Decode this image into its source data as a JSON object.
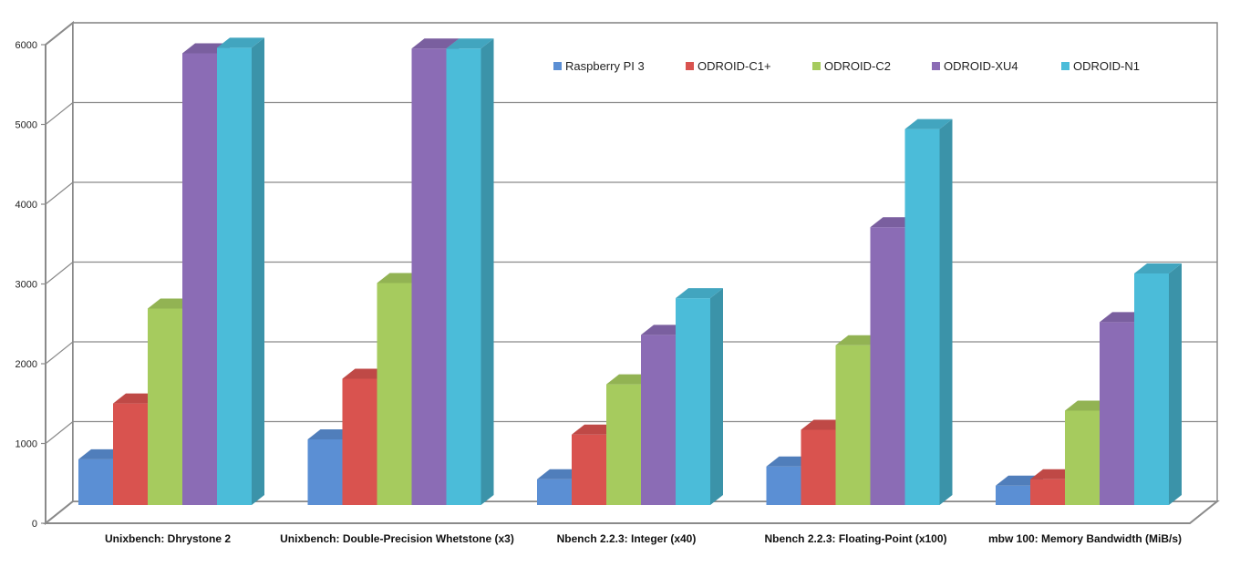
{
  "chart_data": {
    "type": "bar",
    "style": "3d-clustered",
    "title": "",
    "xlabel": "",
    "ylabel": "",
    "ylim": [
      0,
      6000
    ],
    "yticks": [
      0,
      1000,
      2000,
      3000,
      4000,
      5000,
      6000
    ],
    "grid": true,
    "legend_position": "top-right",
    "categories": [
      "Unixbench: Dhrystone 2",
      "Unixbench: Double-Precision Whetstone (x3)",
      "Nbench 2.2.3: Integer (x40)",
      "Nbench 2.2.3: Floating-Point (x100)",
      "mbw 100: Memory Bandwidth (MiB/s)"
    ],
    "series": [
      {
        "name": "Raspberry PI 3",
        "color": "#5B8FD4",
        "values": [
          870,
          1120,
          620,
          780,
          540
        ]
      },
      {
        "name": "ODROID-C1+",
        "color": "#D9534F",
        "values": [
          1570,
          1880,
          1180,
          1240,
          620
        ]
      },
      {
        "name": "ODROID-C2",
        "color": "#A6CB5E",
        "values": [
          2760,
          3080,
          1810,
          2300,
          1480
        ]
      },
      {
        "name": "ODROID-XU4",
        "color": "#8B6CB5",
        "values": [
          5960,
          6020,
          2430,
          3780,
          2590
        ]
      },
      {
        "name": "ODROID-N1",
        "color": "#4BBCD9",
        "values": [
          6030,
          6020,
          2890,
          5010,
          3200
        ]
      }
    ]
  }
}
